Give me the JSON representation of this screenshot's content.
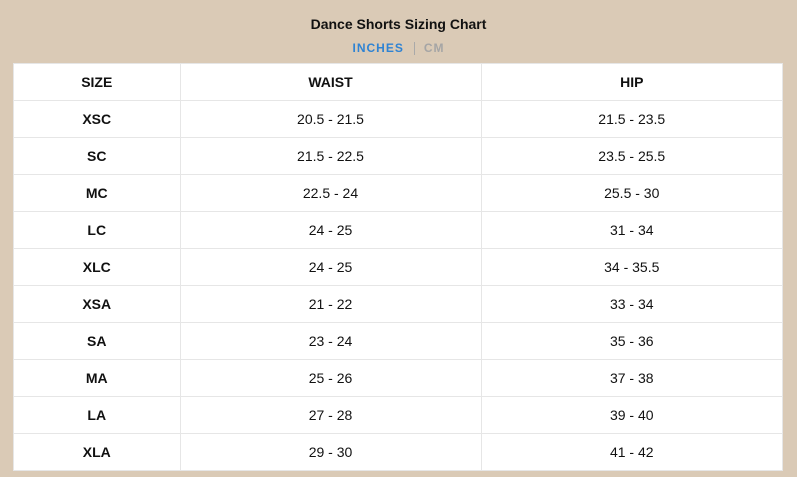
{
  "title": "Dance Shorts Sizing Chart",
  "units": {
    "inches": "INCHES",
    "cm": "CM",
    "active": "inches"
  },
  "colors": {
    "background": "#dacab6",
    "active_unit": "#2f83d3",
    "inactive_unit": "#a5a5a5"
  },
  "table": {
    "headers": [
      "SIZE",
      "WAIST",
      "HIP"
    ],
    "rows": [
      [
        "XSC",
        "20.5 - 21.5",
        "21.5 - 23.5"
      ],
      [
        "SC",
        "21.5 - 22.5",
        "23.5 - 25.5"
      ],
      [
        "MC",
        "22.5 - 24",
        "25.5 - 30"
      ],
      [
        "LC",
        "24 - 25",
        "31 - 34"
      ],
      [
        "XLC",
        "24 - 25",
        "34 - 35.5"
      ],
      [
        "XSA",
        "21 - 22",
        "33 - 34"
      ],
      [
        "SA",
        "23 - 24",
        "35 - 36"
      ],
      [
        "MA",
        "25 - 26",
        "37 - 38"
      ],
      [
        "LA",
        "27 - 28",
        "39 - 40"
      ],
      [
        "XLA",
        "29 - 30",
        "41 - 42"
      ]
    ]
  }
}
